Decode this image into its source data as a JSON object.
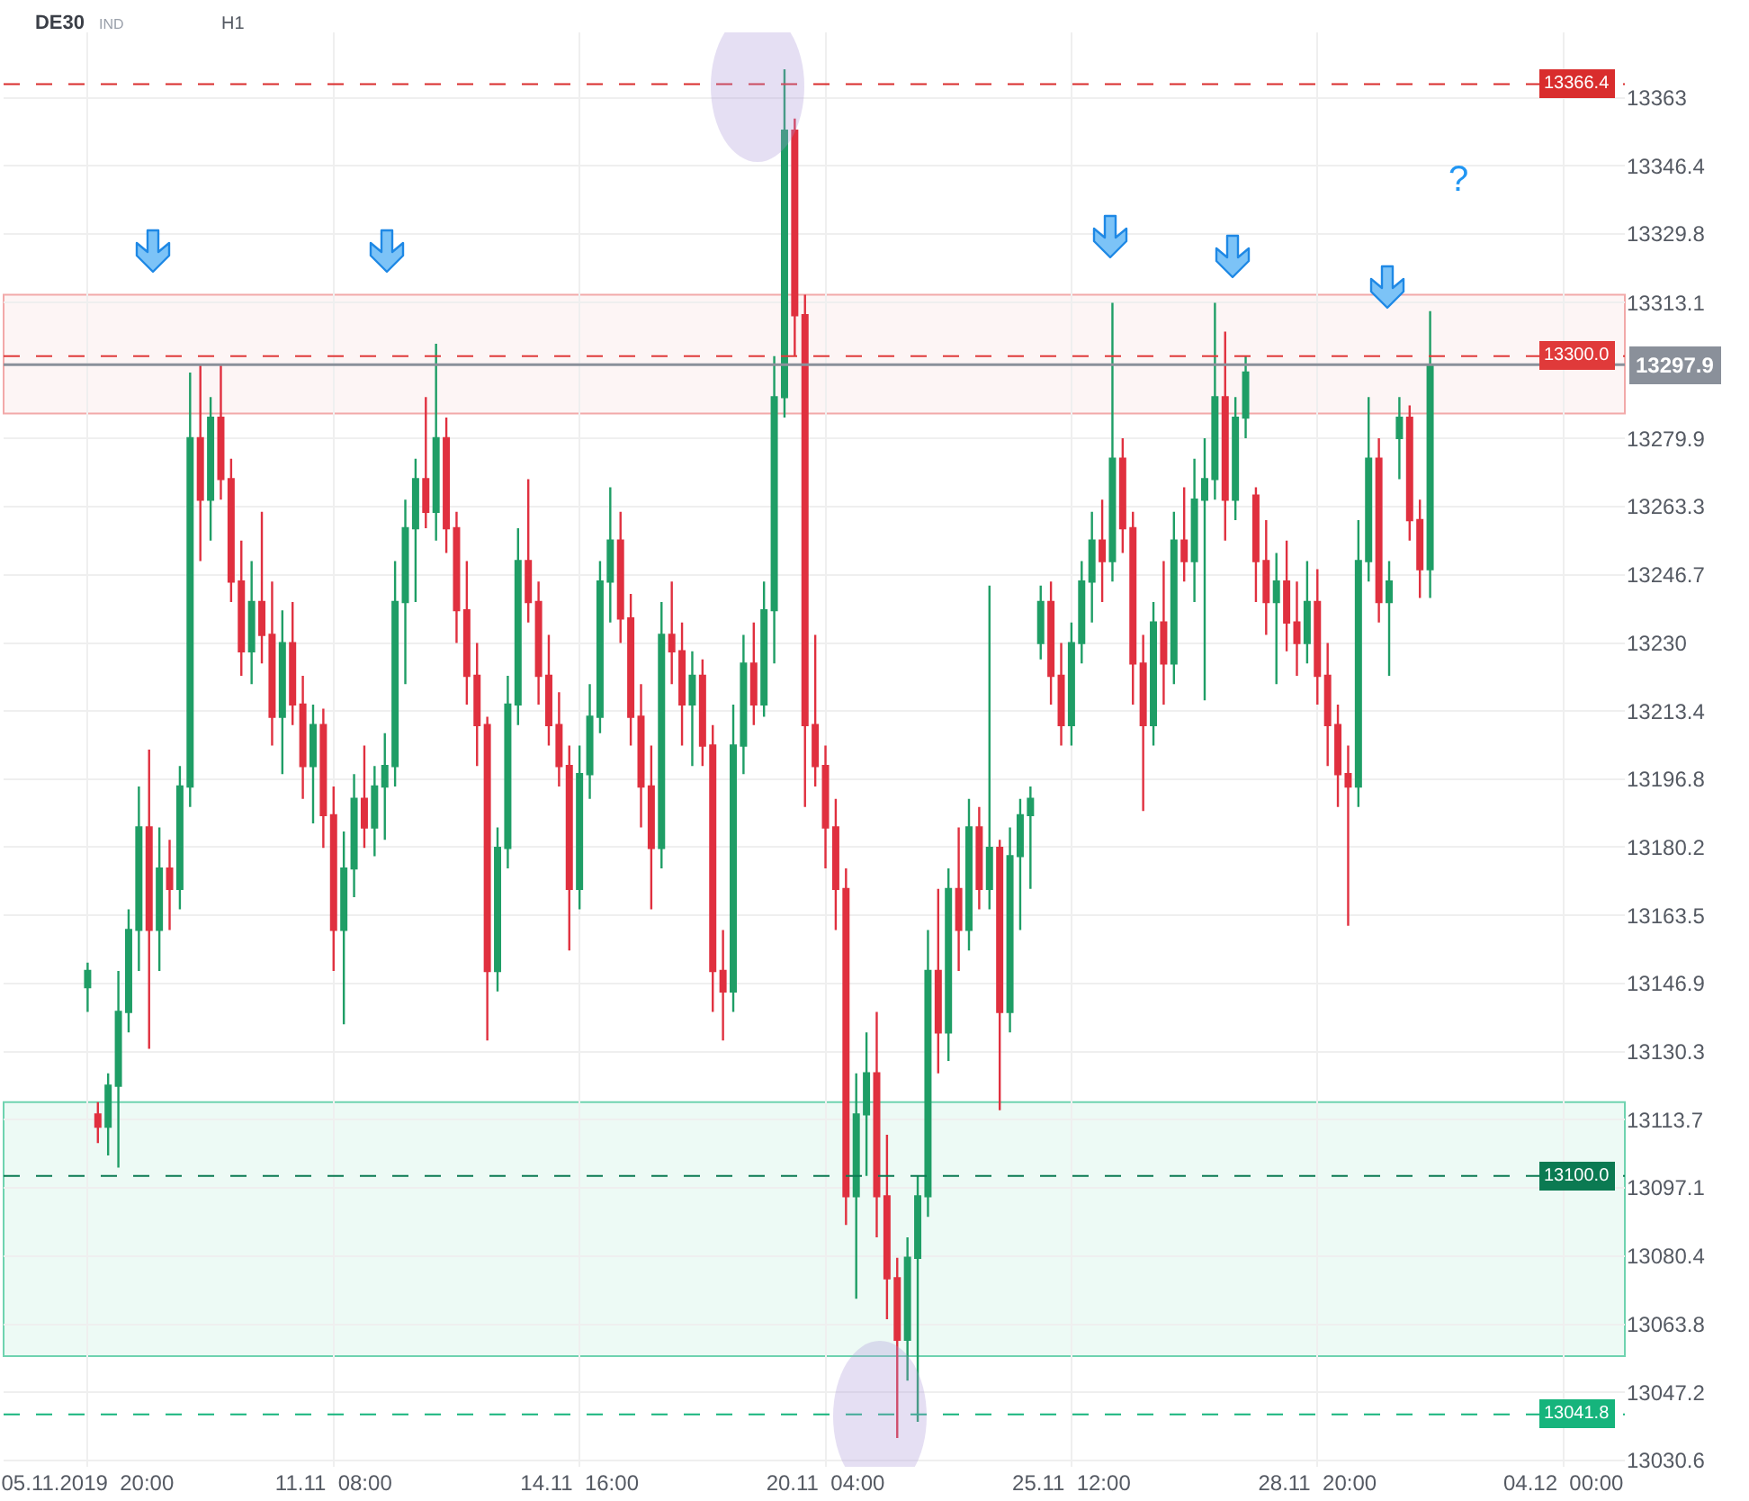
{
  "chart_data": {
    "type": "candlestick",
    "title": "DE30",
    "annotations": [
      "IND",
      "H1",
      "?"
    ],
    "categories": [
      "05.11.2019  20:00",
      null,
      null,
      null,
      null,
      null,
      null,
      null,
      null,
      null,
      null,
      null,
      null,
      null,
      null,
      null,
      null,
      null,
      null,
      null,
      null,
      null,
      null,
      null,
      "11.11  08:00",
      null,
      null,
      null,
      null,
      null,
      null,
      null,
      null,
      null,
      null,
      null,
      null,
      null,
      null,
      null,
      null,
      null,
      null,
      null,
      null,
      null,
      null,
      null,
      "14.11  16:00",
      null,
      null,
      null,
      null,
      null,
      null,
      null,
      null,
      null,
      null,
      null,
      null,
      null,
      null,
      null,
      null,
      null,
      null,
      null,
      null,
      null,
      null,
      null,
      "20.11  04:00",
      null,
      null,
      null,
      null,
      null,
      null,
      null,
      null,
      null,
      null,
      null,
      null,
      null,
      null,
      null,
      null,
      null,
      null,
      null,
      null,
      null,
      null,
      null,
      "25.11  12:00",
      null,
      null,
      null,
      null,
      null,
      null,
      null,
      null,
      null,
      null,
      null,
      null,
      null,
      null,
      null,
      null,
      null,
      null,
      null,
      null,
      null,
      null,
      null,
      "28.11  20:00",
      null,
      null,
      null,
      null,
      null,
      null,
      null,
      null,
      null,
      null,
      null,
      null,
      null,
      null,
      null,
      null,
      null,
      null,
      null,
      null,
      null,
      null,
      null,
      "04.12  00:00"
    ],
    "ohlc": [
      [
        13146,
        13152,
        13140,
        13150
      ],
      [
        13115,
        13118,
        13108,
        13112
      ],
      [
        13112,
        13125,
        13105,
        13122
      ],
      [
        13122,
        13150,
        13102,
        13140
      ],
      [
        13140,
        13165,
        13135,
        13160
      ],
      [
        13160,
        13195,
        13150,
        13185
      ],
      [
        13185,
        13204,
        13131,
        13160
      ],
      [
        13160,
        13185,
        13150,
        13175
      ],
      [
        13175,
        13182,
        13160,
        13170
      ],
      [
        13170,
        13200,
        13165,
        13195
      ],
      [
        13195,
        13296,
        13190,
        13280
      ],
      [
        13280,
        13298,
        13250,
        13265
      ],
      [
        13265,
        13290,
        13255,
        13285
      ],
      [
        13285,
        13298,
        13265,
        13270
      ],
      [
        13270,
        13275,
        13240,
        13245
      ],
      [
        13245,
        13255,
        13222,
        13228
      ],
      [
        13228,
        13250,
        13220,
        13240
      ],
      [
        13240,
        13262,
        13225,
        13232
      ],
      [
        13232,
        13245,
        13205,
        13212
      ],
      [
        13212,
        13238,
        13198,
        13230
      ],
      [
        13230,
        13240,
        13210,
        13215
      ],
      [
        13215,
        13222,
        13192,
        13200
      ],
      [
        13200,
        13215,
        13186,
        13210
      ],
      [
        13210,
        13214,
        13180,
        13188
      ],
      [
        13188,
        13195,
        13150,
        13160
      ],
      [
        13160,
        13184,
        13137,
        13175
      ],
      [
        13175,
        13198,
        13168,
        13192
      ],
      [
        13192,
        13205,
        13180,
        13185
      ],
      [
        13185,
        13200,
        13178,
        13195
      ],
      [
        13195,
        13208,
        13182,
        13200
      ],
      [
        13200,
        13250,
        13195,
        13240
      ],
      [
        13240,
        13265,
        13220,
        13258
      ],
      [
        13258,
        13275,
        13240,
        13270
      ],
      [
        13270,
        13290,
        13258,
        13262
      ],
      [
        13262,
        13303,
        13255,
        13280
      ],
      [
        13280,
        13285,
        13252,
        13258
      ],
      [
        13258,
        13262,
        13230,
        13238
      ],
      [
        13238,
        13250,
        13215,
        13222
      ],
      [
        13222,
        13230,
        13200,
        13210
      ],
      [
        13210,
        13212,
        13133,
        13150
      ],
      [
        13150,
        13185,
        13145,
        13180
      ],
      [
        13180,
        13222,
        13175,
        13215
      ],
      [
        13215,
        13258,
        13210,
        13250
      ],
      [
        13250,
        13270,
        13235,
        13240
      ],
      [
        13240,
        13245,
        13215,
        13222
      ],
      [
        13222,
        13232,
        13205,
        13210
      ],
      [
        13210,
        13218,
        13195,
        13200
      ],
      [
        13200,
        13205,
        13155,
        13170
      ],
      [
        13170,
        13205,
        13165,
        13198
      ],
      [
        13198,
        13220,
        13192,
        13212
      ],
      [
        13212,
        13250,
        13208,
        13245
      ],
      [
        13245,
        13268,
        13235,
        13255
      ],
      [
        13255,
        13262,
        13230,
        13236
      ],
      [
        13236,
        13242,
        13205,
        13212
      ],
      [
        13212,
        13220,
        13185,
        13195
      ],
      [
        13195,
        13205,
        13165,
        13180
      ],
      [
        13180,
        13240,
        13175,
        13232
      ],
      [
        13232,
        13245,
        13220,
        13228
      ],
      [
        13228,
        13235,
        13205,
        13215
      ],
      [
        13215,
        13228,
        13200,
        13222
      ],
      [
        13222,
        13226,
        13200,
        13205
      ],
      [
        13205,
        13210,
        13140,
        13150
      ],
      [
        13150,
        13160,
        13133,
        13145
      ],
      [
        13145,
        13215,
        13140,
        13205
      ],
      [
        13205,
        13232,
        13198,
        13225
      ],
      [
        13225,
        13235,
        13210,
        13215
      ],
      [
        13215,
        13245,
        13212,
        13238
      ],
      [
        13238,
        13300,
        13225,
        13290
      ],
      [
        13290,
        13370,
        13285,
        13355
      ],
      [
        13355,
        13358,
        13300,
        13310
      ],
      [
        13310,
        13315,
        13190,
        13210
      ],
      [
        13210,
        13232,
        13195,
        13200
      ],
      [
        13200,
        13205,
        13175,
        13185
      ],
      [
        13185,
        13192,
        13160,
        13170
      ],
      [
        13170,
        13175,
        13088,
        13095
      ],
      [
        13095,
        13125,
        13070,
        13115
      ],
      [
        13115,
        13135,
        13100,
        13125
      ],
      [
        13125,
        13140,
        13085,
        13095
      ],
      [
        13095,
        13110,
        13065,
        13075
      ],
      [
        13075,
        13080,
        13036,
        13060
      ],
      [
        13060,
        13085,
        13050,
        13080
      ],
      [
        13080,
        13100,
        13040,
        13095
      ],
      [
        13095,
        13160,
        13090,
        13150
      ],
      [
        13150,
        13170,
        13125,
        13135
      ],
      [
        13135,
        13175,
        13128,
        13170
      ],
      [
        13170,
        13185,
        13150,
        13160
      ],
      [
        13160,
        13192,
        13155,
        13185
      ],
      [
        13185,
        13190,
        13165,
        13170
      ],
      [
        13170,
        13244,
        13165,
        13180
      ],
      [
        13180,
        13182,
        13116,
        13140
      ],
      [
        13140,
        13185,
        13135,
        13178
      ],
      [
        13178,
        13192,
        13160,
        13188
      ],
      [
        13188,
        13195,
        13170,
        13192
      ],
      [
        13230,
        13244,
        13226,
        13240
      ],
      [
        13240,
        13245,
        13215,
        13222
      ],
      [
        13222,
        13230,
        13205,
        13210
      ],
      [
        13210,
        13235,
        13205,
        13230
      ],
      [
        13230,
        13250,
        13225,
        13245
      ],
      [
        13245,
        13262,
        13235,
        13255
      ],
      [
        13255,
        13265,
        13240,
        13250
      ],
      [
        13250,
        13313,
        13245,
        13275
      ],
      [
        13275,
        13280,
        13252,
        13258
      ],
      [
        13258,
        13262,
        13215,
        13225
      ],
      [
        13225,
        13232,
        13189,
        13210
      ],
      [
        13210,
        13240,
        13205,
        13235
      ],
      [
        13235,
        13250,
        13215,
        13225
      ],
      [
        13225,
        13262,
        13220,
        13255
      ],
      [
        13255,
        13268,
        13245,
        13250
      ],
      [
        13250,
        13275,
        13240,
        13265
      ],
      [
        13265,
        13280,
        13216,
        13270
      ],
      [
        13270,
        13313,
        13265,
        13290
      ],
      [
        13290,
        13306,
        13255,
        13265
      ],
      [
        13265,
        13290,
        13260,
        13285
      ],
      [
        13285,
        13300,
        13280,
        13296
      ],
      [
        13266,
        13268,
        13240,
        13250
      ],
      [
        13250,
        13260,
        13232,
        13240
      ],
      [
        13240,
        13252,
        13220,
        13245
      ],
      [
        13245,
        13255,
        13228,
        13235
      ],
      [
        13235,
        13245,
        13222,
        13230
      ],
      [
        13230,
        13250,
        13225,
        13240
      ],
      [
        13240,
        13248,
        13215,
        13222
      ],
      [
        13222,
        13230,
        13200,
        13210
      ],
      [
        13210,
        13215,
        13190,
        13198
      ],
      [
        13198,
        13205,
        13161,
        13195
      ],
      [
        13195,
        13260,
        13190,
        13250
      ],
      [
        13250,
        13290,
        13245,
        13275
      ],
      [
        13275,
        13280,
        13235,
        13240
      ],
      [
        13240,
        13250,
        13222,
        13245
      ],
      [
        13280,
        13290,
        13270,
        13285
      ],
      [
        13285,
        13288,
        13255,
        13260
      ],
      [
        13260,
        13265,
        13241,
        13248
      ],
      [
        13248,
        13311,
        13241,
        13297.9
      ],
      null,
      null,
      null,
      null,
      null,
      null,
      null,
      null,
      null,
      null,
      null,
      null,
      null
    ],
    "ylim": [
      13029,
      13379
    ],
    "yticks": [
      13030.6,
      13047.2,
      13063.8,
      13080.4,
      13097.1,
      13113.7,
      13130.3,
      13146.9,
      13163.5,
      13180.2,
      13196.8,
      13213.4,
      13230.0,
      13246.7,
      13263.3,
      13279.9,
      13313.1,
      13329.8,
      13346.4,
      13363.0
    ],
    "ref_lines": [
      {
        "axis": "y",
        "value": 13366.4,
        "label": "13366.4",
        "color": "#d92d2d",
        "line_style": "dashed"
      },
      {
        "axis": "y",
        "value": 13300.0,
        "label": "13300.0",
        "color": "#e03a3a",
        "line_style": "dashed"
      },
      {
        "axis": "y",
        "value": 13297.9,
        "label": "13297.9",
        "color": "#8a909a",
        "line_style": "solid"
      },
      {
        "axis": "y",
        "value": 13100.0,
        "label": "13100.0",
        "color": "#0b7a52",
        "line_style": "dashed"
      },
      {
        "axis": "y",
        "value": 13041.8,
        "label": "13041.8",
        "color": "#16b47c",
        "line_style": "dashed"
      }
    ],
    "bands": [
      {
        "axis": "y",
        "from": 13286,
        "to": 13315,
        "color": "#f2a9a9"
      },
      {
        "axis": "y",
        "from": 13056,
        "to": 13118,
        "color": "#6fd3b0"
      }
    ],
    "grid": true
  }
}
